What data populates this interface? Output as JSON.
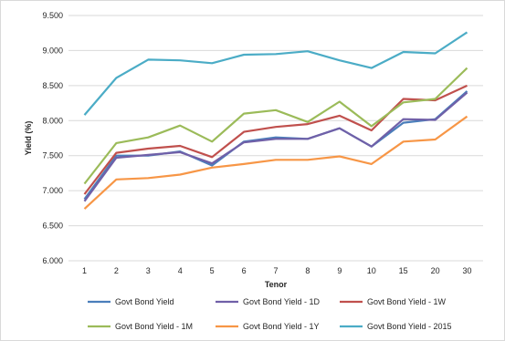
{
  "chart_data": {
    "type": "line",
    "title": "",
    "xlabel": "Tenor",
    "ylabel": "Yield (%)",
    "categories": [
      "1",
      "2",
      "3",
      "4",
      "5",
      "6",
      "7",
      "8",
      "9",
      "10",
      "15",
      "20",
      "30"
    ],
    "yticks": [
      "6.000",
      "6.500",
      "7.000",
      "7.500",
      "8.000",
      "8.500",
      "9.000",
      "9.500"
    ],
    "ylim": [
      6.0,
      9.5
    ],
    "ystep": 0.5,
    "grid": "horizontal",
    "legend_position": "bottom",
    "series": [
      {
        "name": "Govt Bond Yield",
        "color": "#4a7ebb",
        "values": [
          6.88,
          7.5,
          7.5,
          7.56,
          7.36,
          7.7,
          7.76,
          7.74,
          7.89,
          7.63,
          7.97,
          8.02,
          8.42
        ]
      },
      {
        "name": "Govt Bond Yield - 1D",
        "color": "#7060a8",
        "values": [
          6.85,
          7.47,
          7.51,
          7.55,
          7.39,
          7.69,
          7.74,
          7.74,
          7.89,
          7.63,
          8.02,
          8.01,
          8.4
        ]
      },
      {
        "name": "Govt Bond Yield - 1W",
        "color": "#c0504d",
        "values": [
          6.95,
          7.54,
          7.6,
          7.64,
          7.48,
          7.84,
          7.91,
          7.95,
          8.07,
          7.86,
          8.31,
          8.29,
          8.5
        ]
      },
      {
        "name": "Govt Bond Yield - 1M",
        "color": "#9bbb59",
        "values": [
          7.1,
          7.68,
          7.76,
          7.93,
          7.7,
          8.1,
          8.15,
          7.98,
          8.27,
          7.92,
          8.26,
          8.31,
          8.75
        ]
      },
      {
        "name": "Govt Bond Yield - 1Y",
        "color": "#f79646",
        "values": [
          6.74,
          7.16,
          7.18,
          7.23,
          7.33,
          7.38,
          7.44,
          7.44,
          7.49,
          7.38,
          7.7,
          7.73,
          8.06
        ]
      },
      {
        "name": "Govt Bond Yield - 2015",
        "color": "#4bacc6",
        "values": [
          8.08,
          8.61,
          8.87,
          8.86,
          8.82,
          8.94,
          8.95,
          8.99,
          8.86,
          8.75,
          8.98,
          8.96,
          9.26
        ]
      }
    ]
  }
}
